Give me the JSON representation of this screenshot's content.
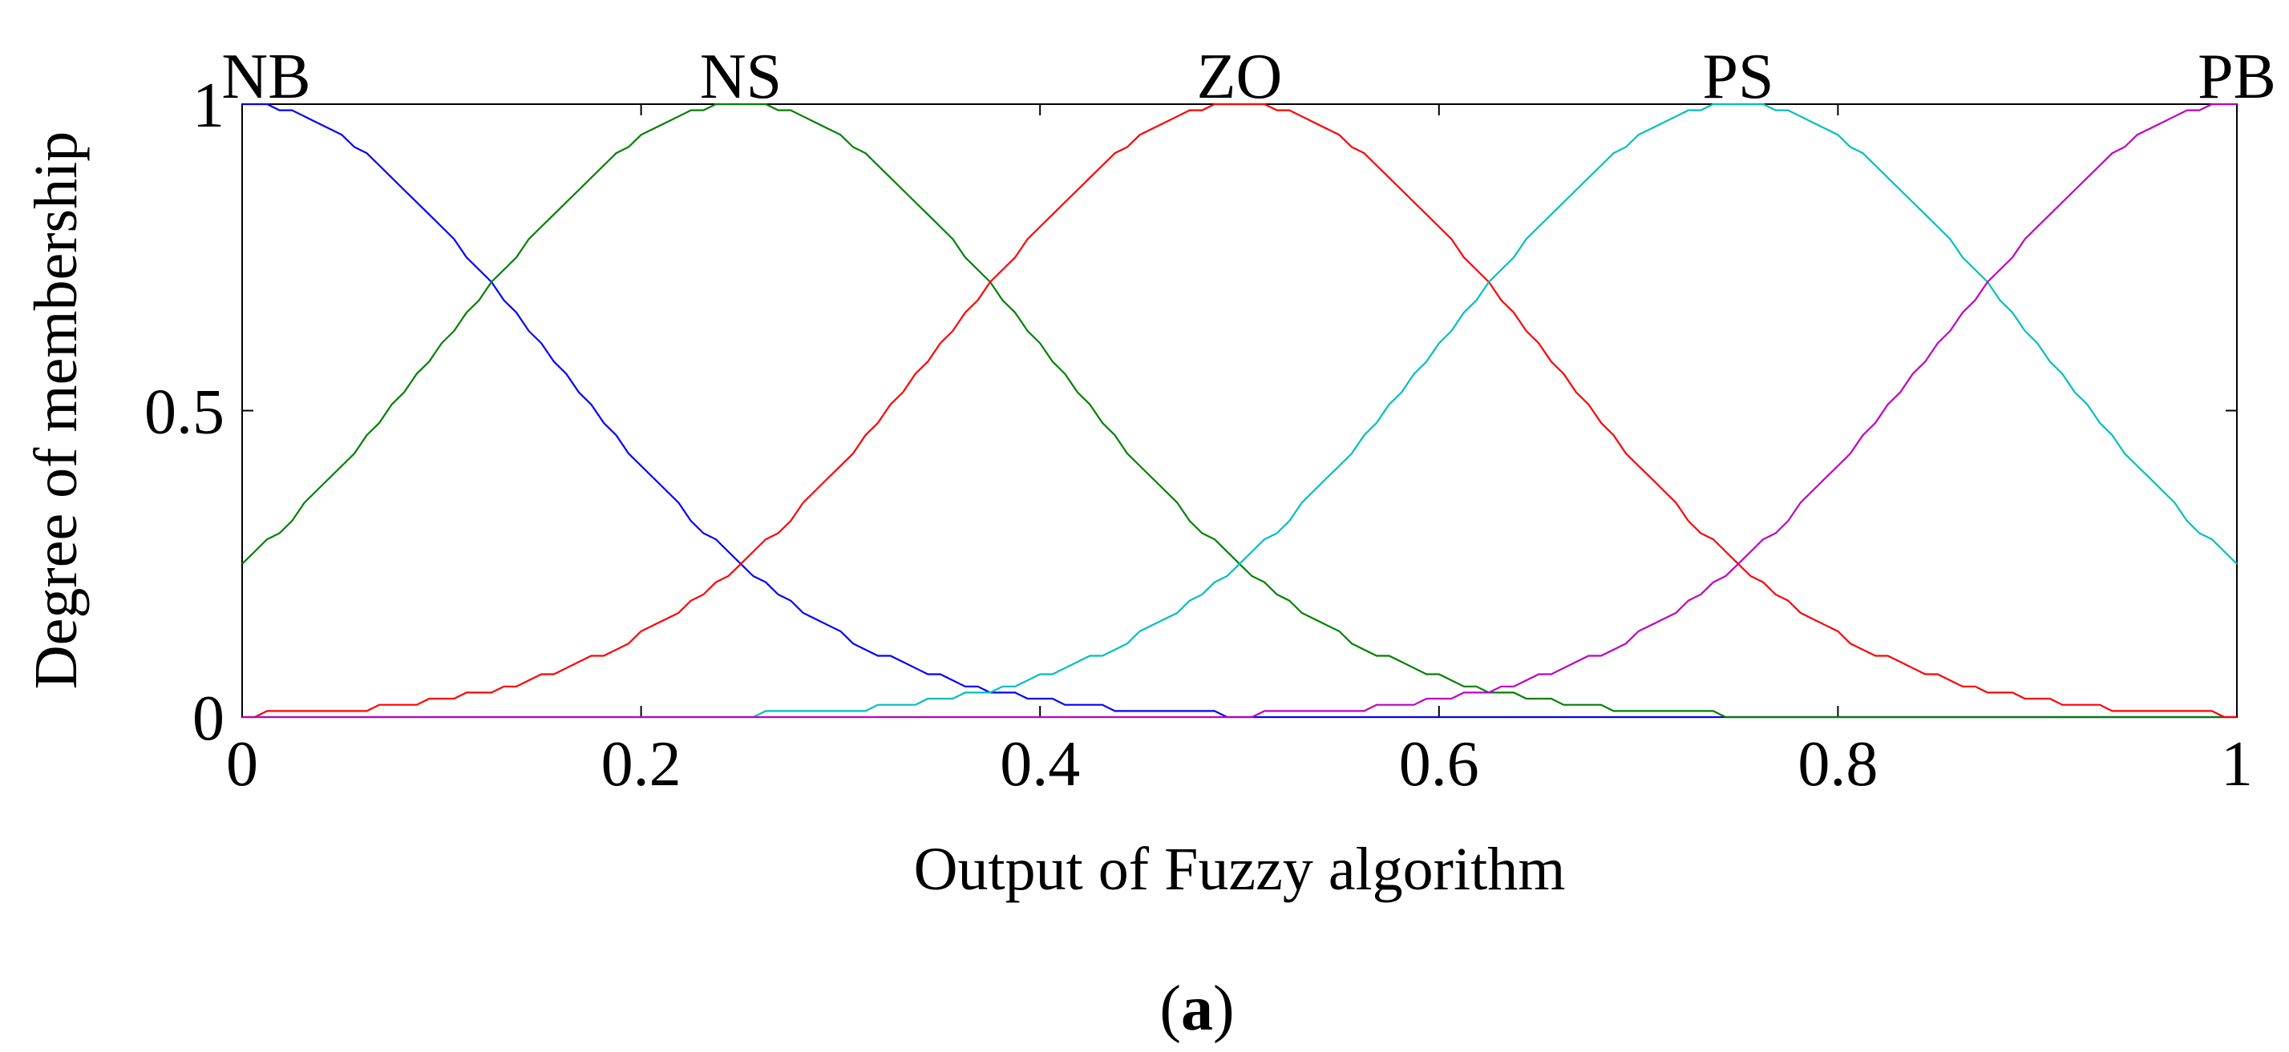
{
  "chart_data": {
    "type": "line",
    "xlabel": "Output of Fuzzy algorithm",
    "ylabel": "Degree of membership",
    "xlim": [
      0,
      1
    ],
    "ylim": [
      0,
      1
    ],
    "xticks": [
      "0",
      "0.2",
      "0.4",
      "0.6",
      "0.8",
      "1"
    ],
    "yticks": [
      "0",
      "0.5",
      "1"
    ],
    "xtick_values": [
      0,
      0.2,
      0.4,
      0.6,
      0.8,
      1
    ],
    "ytick_values": [
      0,
      0.5,
      1
    ],
    "grid": false,
    "curve_shape": "gaussian",
    "sigma": 0.15,
    "series": [
      {
        "name": "NB",
        "center": 0.0,
        "color": "#0000ff"
      },
      {
        "name": "NS",
        "center": 0.25,
        "color": "#008000"
      },
      {
        "name": "ZO",
        "center": 0.5,
        "color": "#ff0000"
      },
      {
        "name": "PS",
        "center": 0.75,
        "color": "#00bfbf"
      },
      {
        "name": "PB",
        "center": 1.0,
        "color": "#bf00bf"
      }
    ]
  },
  "caption": {
    "open": "(",
    "letter": "a",
    "close": ")"
  }
}
